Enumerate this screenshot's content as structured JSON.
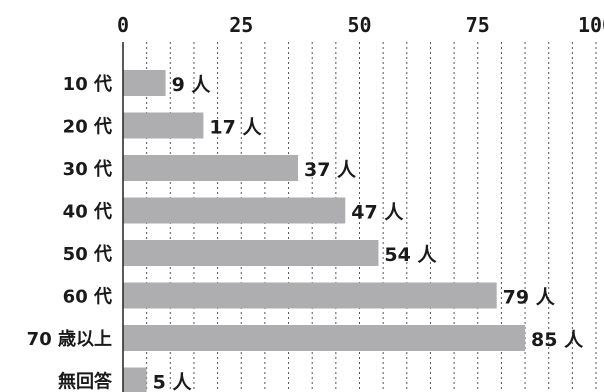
{
  "chart_data": {
    "type": "bar",
    "orientation": "horizontal",
    "categories": [
      "10 代",
      "20 代",
      "30 代",
      "40 代",
      "50 代",
      "60 代",
      "70 歳以上",
      "無回答"
    ],
    "values": [
      9,
      17,
      37,
      47,
      54,
      79,
      85,
      5
    ],
    "value_labels": [
      "9 人",
      "17 人",
      "37 人",
      "47 人",
      "54 人",
      "79 人",
      "85 人",
      "5 人"
    ],
    "xlim": [
      0,
      100
    ],
    "xticks": [
      0,
      25,
      50,
      75,
      100
    ],
    "xtick_labels": [
      "0",
      "25",
      "50",
      "75",
      "100"
    ],
    "grid": true,
    "bar_color": "#aeaeb0",
    "title": "",
    "xlabel": "",
    "ylabel": ""
  }
}
